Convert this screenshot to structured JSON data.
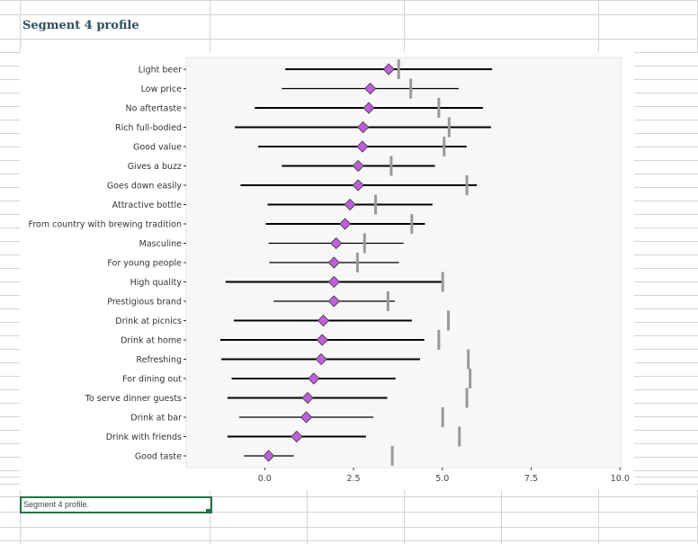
{
  "sheet": {
    "title": "Segment 4 profile",
    "selected_cell_text": "Segment 4 profile."
  },
  "chart_data": {
    "type": "dot-interval",
    "xlim": [
      -2.25,
      10.0
    ],
    "xticks": [
      "0.0",
      "2.5",
      "5.0",
      "7.5",
      "10.0"
    ],
    "xtick_values": [
      0,
      2.5,
      5,
      7.5,
      10
    ],
    "colors": {
      "marker": "#c05fdc",
      "interval": "#000000",
      "reference": "#999999",
      "panel": "#f7f7f7"
    },
    "categories": [
      "Light beer",
      "Low price",
      "No aftertaste",
      "Rich full-bodied",
      "Good value",
      "Gives a buzz",
      "Goes down easily",
      "Attractive bottle",
      "From country with brewing tradition",
      "Masculine",
      "For young people",
      "High quality",
      "Prestigious brand",
      "Drink at picnics",
      "Drink at home",
      "Refreshing",
      "For dining out",
      "To serve dinner guests",
      "Drink at bar",
      "Drink with friends",
      "Good taste"
    ],
    "mean": [
      3.49,
      2.97,
      2.93,
      2.77,
      2.75,
      2.63,
      2.63,
      2.4,
      2.26,
      2.01,
      1.95,
      1.95,
      1.95,
      1.65,
      1.62,
      1.59,
      1.38,
      1.21,
      1.17,
      0.9,
      0.11
    ],
    "low": [
      0.58,
      0.48,
      -0.28,
      -0.84,
      -0.18,
      0.48,
      -0.68,
      0.08,
      0.03,
      0.11,
      0.13,
      -1.1,
      0.25,
      -0.87,
      -1.25,
      -1.22,
      -0.93,
      -1.05,
      -0.72,
      -1.05,
      -0.58
    ],
    "high": [
      6.4,
      5.46,
      6.14,
      6.37,
      5.68,
      4.79,
      5.97,
      4.72,
      4.51,
      3.91,
      3.78,
      5.01,
      3.66,
      4.14,
      4.49,
      4.37,
      3.68,
      3.45,
      3.06,
      2.85,
      0.82
    ],
    "reference": [
      3.77,
      4.11,
      4.9,
      5.19,
      5.05,
      3.56,
      5.69,
      3.12,
      4.14,
      2.81,
      2.61,
      5.01,
      3.47,
      5.17,
      4.9,
      5.73,
      5.78,
      5.69,
      5.01,
      5.48,
      3.59
    ],
    "thick_interval": [
      true,
      false,
      true,
      true,
      true,
      true,
      true,
      true,
      true,
      false,
      false,
      true,
      false,
      true,
      true,
      true,
      true,
      true,
      false,
      true,
      false
    ]
  }
}
